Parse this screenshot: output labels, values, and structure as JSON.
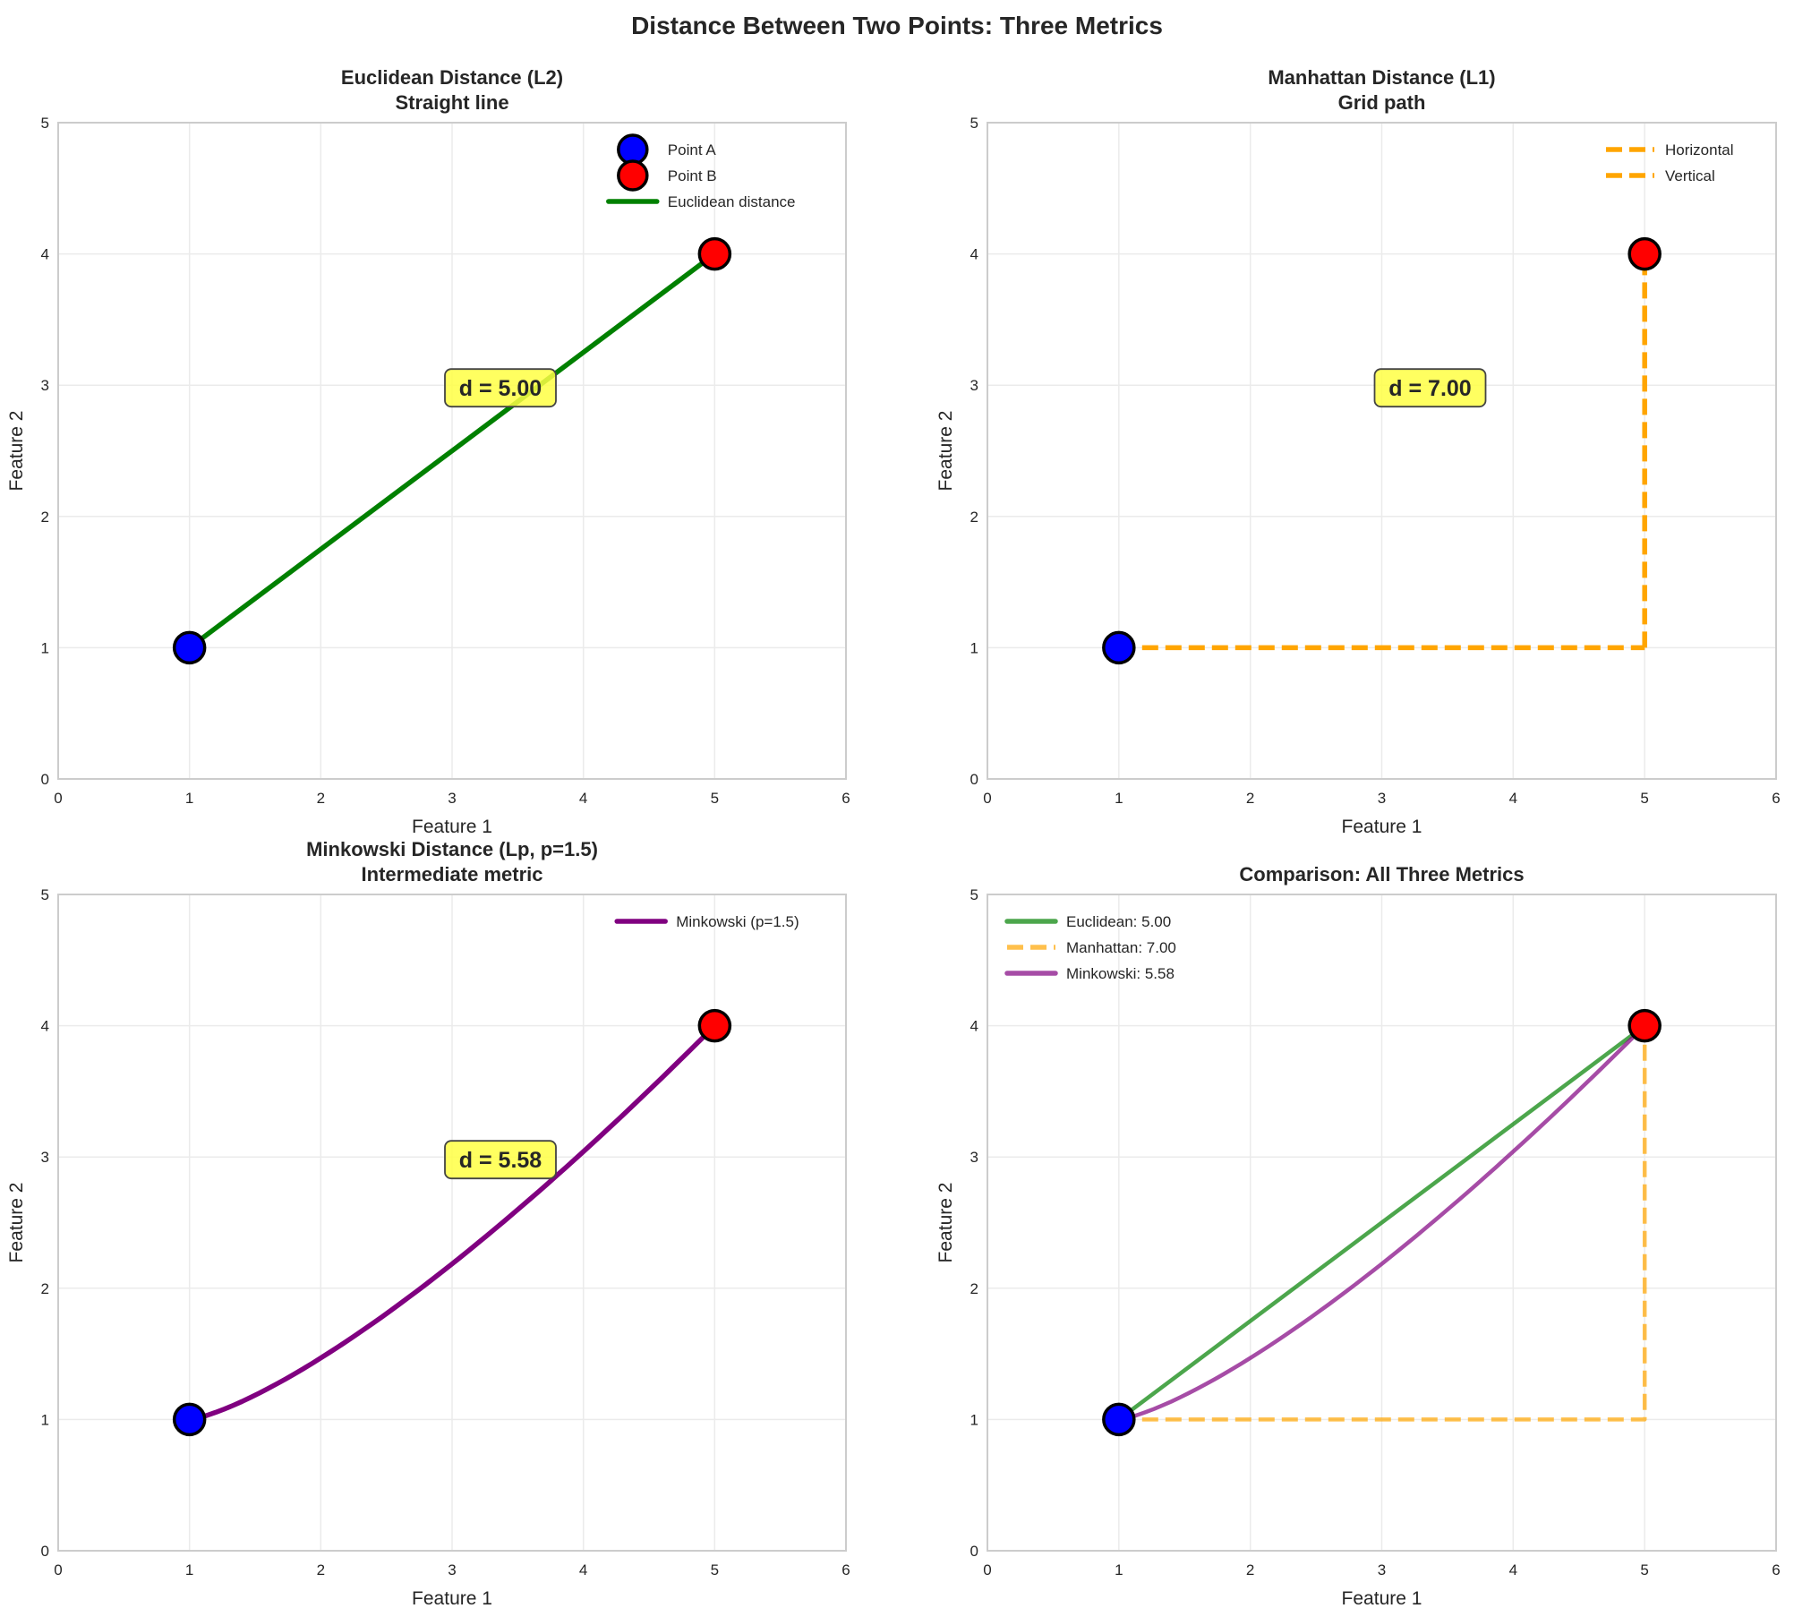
{
  "suptitle": "Distance Between Two Points: Three Metrics",
  "chart_data": [
    {
      "type": "line",
      "title": "Euclidean Distance (L2)",
      "subtitle": "Straight line",
      "xlabel": "Feature 1",
      "ylabel": "Feature 2",
      "xlim": [
        0,
        6
      ],
      "ylim": [
        0,
        5
      ],
      "xticks": [
        "0",
        "1",
        "2",
        "3",
        "4",
        "5",
        "6"
      ],
      "yticks": [
        "0",
        "1",
        "2",
        "3",
        "4",
        "5"
      ],
      "grid": true,
      "legend_position": "top-right",
      "points": [
        {
          "name": "Point A",
          "x": 1,
          "y": 1,
          "color": "#0000ff"
        },
        {
          "name": "Point B",
          "x": 5,
          "y": 4,
          "color": "#ff0000"
        }
      ],
      "series": [
        {
          "name": "Euclidean distance",
          "kind": "straight",
          "x": [
            1,
            5
          ],
          "y": [
            1,
            4
          ],
          "color": "#008000",
          "style": "solid",
          "opacity": 1
        }
      ],
      "legend": [
        {
          "label": "Point A",
          "marker": "circle",
          "color": "#0000ff"
        },
        {
          "label": "Point B",
          "marker": "circle",
          "color": "#ff0000"
        },
        {
          "label": "Euclidean distance",
          "marker": "line",
          "color": "#008000",
          "style": "solid"
        }
      ],
      "annotation": {
        "text": "d = 5.00",
        "x": 3,
        "y": 3,
        "bg": "#ffff44"
      }
    },
    {
      "type": "line",
      "title": "Manhattan Distance (L1)",
      "subtitle": "Grid path",
      "xlabel": "Feature 1",
      "ylabel": "Feature 2",
      "xlim": [
        0,
        6
      ],
      "ylim": [
        0,
        5
      ],
      "xticks": [
        "0",
        "1",
        "2",
        "3",
        "4",
        "5",
        "6"
      ],
      "yticks": [
        "0",
        "1",
        "2",
        "3",
        "4",
        "5"
      ],
      "grid": true,
      "legend_position": "top-right",
      "points": [
        {
          "name": "Point A",
          "x": 1,
          "y": 1,
          "color": "#0000ff"
        },
        {
          "name": "Point B",
          "x": 5,
          "y": 4,
          "color": "#ff0000"
        }
      ],
      "series": [
        {
          "name": "Horizontal",
          "kind": "straight",
          "x": [
            1,
            5
          ],
          "y": [
            1,
            1
          ],
          "color": "#ffa500",
          "style": "dashed",
          "opacity": 1
        },
        {
          "name": "Vertical",
          "kind": "straight",
          "x": [
            5,
            5
          ],
          "y": [
            1,
            4
          ],
          "color": "#ffa500",
          "style": "dashed",
          "opacity": 1
        }
      ],
      "legend": [
        {
          "label": "Horizontal",
          "marker": "line",
          "color": "#ffa500",
          "style": "dashed"
        },
        {
          "label": "Vertical",
          "marker": "line",
          "color": "#ffa500",
          "style": "dashed"
        }
      ],
      "annotation": {
        "text": "d = 7.00",
        "x": 3,
        "y": 3,
        "bg": "#ffff44"
      }
    },
    {
      "type": "line",
      "title": "Minkowski Distance (Lp, p=1.5)",
      "subtitle": "Intermediate metric",
      "xlabel": "Feature 1",
      "ylabel": "Feature 2",
      "xlim": [
        0,
        6
      ],
      "ylim": [
        0,
        5
      ],
      "xticks": [
        "0",
        "1",
        "2",
        "3",
        "4",
        "5",
        "6"
      ],
      "yticks": [
        "0",
        "1",
        "2",
        "3",
        "4",
        "5"
      ],
      "grid": true,
      "legend_position": "top-right",
      "points": [
        {
          "name": "Point A",
          "x": 1,
          "y": 1,
          "color": "#0000ff"
        },
        {
          "name": "Point B",
          "x": 5,
          "y": 4,
          "color": "#ff0000"
        }
      ],
      "series": [
        {
          "name": "Minkowski (p=1.5)",
          "kind": "power",
          "p": 1.5,
          "x": [
            1,
            5
          ],
          "y": [
            1,
            4
          ],
          "color": "#800080",
          "style": "solid",
          "opacity": 1
        }
      ],
      "legend": [
        {
          "label": "Minkowski (p=1.5)",
          "marker": "line",
          "color": "#800080",
          "style": "solid"
        }
      ],
      "annotation": {
        "text": "d = 5.58",
        "x": 3,
        "y": 3,
        "bg": "#ffff44"
      }
    },
    {
      "type": "line",
      "title": "Comparison: All Three Metrics",
      "subtitle": "",
      "xlabel": "Feature 1",
      "ylabel": "Feature 2",
      "xlim": [
        0,
        6
      ],
      "ylim": [
        0,
        5
      ],
      "xticks": [
        "0",
        "1",
        "2",
        "3",
        "4",
        "5",
        "6"
      ],
      "yticks": [
        "0",
        "1",
        "2",
        "3",
        "4",
        "5"
      ],
      "grid": true,
      "legend_position": "top-left",
      "points": [
        {
          "name": "Point A",
          "x": 1,
          "y": 1,
          "color": "#0000ff"
        },
        {
          "name": "Point B",
          "x": 5,
          "y": 4,
          "color": "#ff0000"
        }
      ],
      "series": [
        {
          "name": "Euclidean: 5.00",
          "kind": "straight",
          "x": [
            1,
            5
          ],
          "y": [
            1,
            4
          ],
          "color": "#008000",
          "style": "solid",
          "opacity": 0.7
        },
        {
          "name": "Manhattan: 7.00",
          "kind": "polyline",
          "x": [
            1,
            5,
            5
          ],
          "y": [
            1,
            1,
            4
          ],
          "color": "#ffa500",
          "style": "dashed",
          "opacity": 0.7
        },
        {
          "name": "Minkowski: 5.58",
          "kind": "power",
          "p": 1.5,
          "x": [
            1,
            5
          ],
          "y": [
            1,
            4
          ],
          "color": "#800080",
          "style": "solid",
          "opacity": 0.7
        }
      ],
      "legend": [
        {
          "label": "Euclidean: 5.00",
          "marker": "line",
          "color": "#008000",
          "style": "solid",
          "opacity": 0.7
        },
        {
          "label": "Manhattan: 7.00",
          "marker": "line",
          "color": "#ffa500",
          "style": "dashed",
          "opacity": 0.7
        },
        {
          "label": "Minkowski: 5.58",
          "marker": "line",
          "color": "#800080",
          "style": "solid",
          "opacity": 0.7
        }
      ],
      "annotation": null
    }
  ]
}
